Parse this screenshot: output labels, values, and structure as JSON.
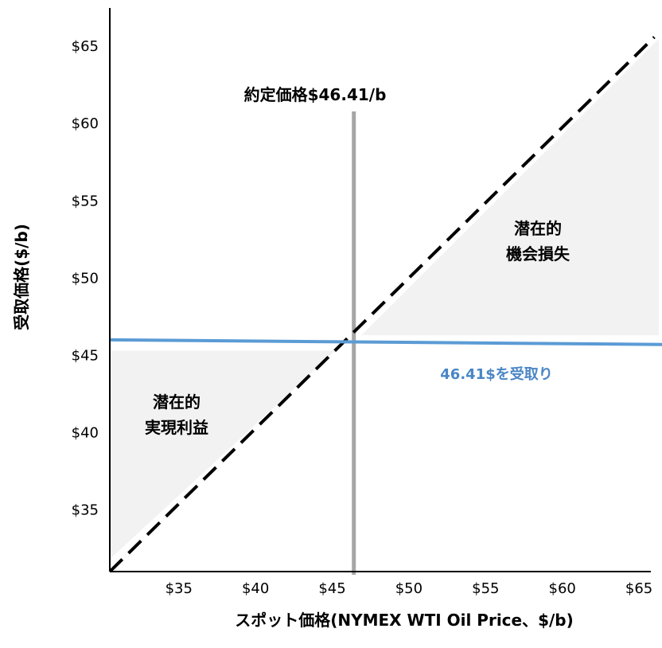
{
  "chart_data": {
    "type": "line",
    "xlabel": "スポット価格(NYMEX WTI Oil Price、$/b)",
    "ylabel": "受取価格($/b)",
    "xlim": [
      30.5,
      66.5
    ],
    "ylim": [
      31,
      68
    ],
    "x_ticks": [
      35,
      40,
      45,
      50,
      55,
      60,
      65
    ],
    "y_ticks": [
      35,
      40,
      45,
      50,
      55,
      60,
      65
    ],
    "x_tick_labels": [
      "$35",
      "$40",
      "$45",
      "$50",
      "$55",
      "$60",
      "$65"
    ],
    "y_tick_labels": [
      "$35",
      "$40",
      "$45",
      "$50",
      "$55",
      "$60",
      "$65"
    ],
    "strike": 46.41,
    "series": [
      {
        "style": "dashed",
        "color": "#000000",
        "x": [
          30.5,
          66
        ],
        "y": [
          31,
          65.6
        ]
      },
      {
        "style": "solid",
        "color": "#5b9bd5",
        "x": [
          30.5,
          66.5
        ],
        "y": [
          46.0,
          45.7
        ]
      }
    ],
    "regions": [
      {
        "lines": [
          "潜在的",
          "実現利益"
        ],
        "color": "#f2f2f2",
        "polygon": [
          [
            30.5,
            45.3
          ],
          [
            45.2,
            45.3
          ],
          [
            30.5,
            31.8
          ]
        ]
      },
      {
        "lines": [
          "潜在的",
          "機会損失"
        ],
        "color": "#f2f2f2",
        "polygon": [
          [
            46.9,
            46.3
          ],
          [
            66.3,
            46.3
          ],
          [
            66.3,
            65.5
          ]
        ]
      }
    ],
    "annotations": {
      "strike_label": "約定価格$46.41/b",
      "receive_label": "46.41$を受取り"
    },
    "strike_line_color": "#a6a6a6",
    "grid": false
  }
}
